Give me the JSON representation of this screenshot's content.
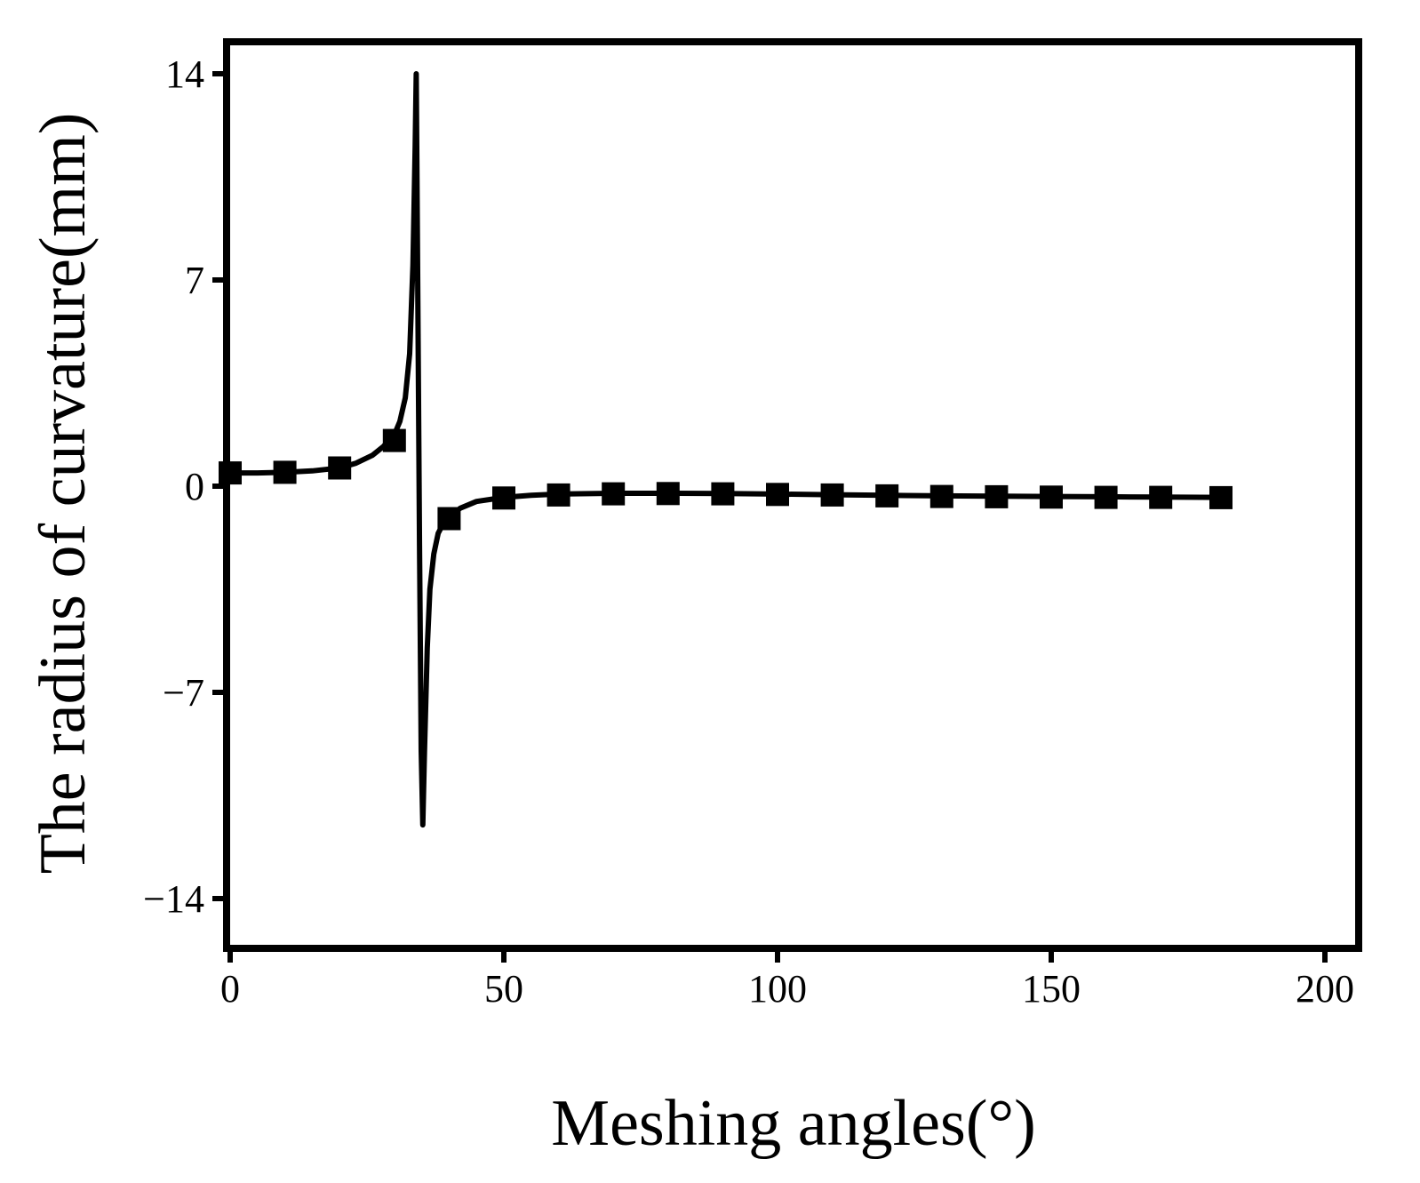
{
  "chart_data": {
    "type": "line",
    "title": "",
    "xlabel": "Meshing angles(°)",
    "ylabel": "The  radius of curvature(mm)",
    "xlim": [
      0,
      200
    ],
    "ylim": [
      -15,
      15
    ],
    "x_ticks": [
      0,
      50,
      100,
      150,
      200
    ],
    "x_tick_labels": [
      "0",
      "50",
      "100",
      "150",
      "200"
    ],
    "y_ticks": [
      14,
      7,
      0,
      -7,
      -14
    ],
    "y_tick_labels": [
      "14",
      "7",
      "0",
      "−7",
      "−14"
    ],
    "grid": false,
    "legend": "none",
    "series": [
      {
        "marker": "square",
        "color": "#000000",
        "line_x": [
          0,
          5,
          10,
          15,
          20,
          23,
          26,
          28,
          30,
          31,
          32,
          32.8,
          33.4,
          33.8,
          34.0,
          34.3,
          34.6,
          34.9,
          35.2,
          35.5,
          36.0,
          36.5,
          37.2,
          38.0,
          39.0,
          40.0,
          42.0,
          45.0,
          50.0,
          55,
          60,
          70,
          80,
          90,
          100,
          110,
          120,
          130,
          140,
          150,
          160,
          170,
          181
        ],
        "line_y": [
          0.45,
          0.45,
          0.47,
          0.52,
          0.62,
          0.78,
          1.05,
          1.35,
          1.75,
          2.2,
          3.0,
          4.5,
          7.5,
          11.5,
          14.0,
          6.0,
          -2.0,
          -9.0,
          -11.5,
          -9.0,
          -5.5,
          -3.5,
          -2.3,
          -1.6,
          -1.25,
          -1.05,
          -0.75,
          -0.52,
          -0.38,
          -0.31,
          -0.27,
          -0.24,
          -0.24,
          -0.25,
          -0.27,
          -0.29,
          -0.31,
          -0.33,
          -0.34,
          -0.35,
          -0.36,
          -0.37,
          -0.38
        ],
        "marker_x": [
          0,
          10,
          20,
          30,
          40,
          50,
          60,
          70,
          80,
          90,
          100,
          110,
          120,
          130,
          140,
          150,
          160,
          170,
          181
        ],
        "marker_y": [
          0.45,
          0.47,
          0.62,
          1.55,
          -1.1,
          -0.4,
          -0.3,
          -0.26,
          -0.25,
          -0.26,
          -0.28,
          -0.3,
          -0.33,
          -0.35,
          -0.36,
          -0.37,
          -0.38,
          -0.38,
          -0.39
        ]
      }
    ]
  }
}
